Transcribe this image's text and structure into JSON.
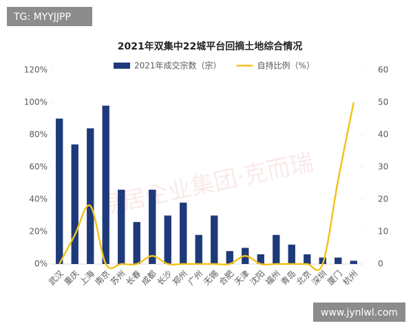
{
  "badge": "TG: MYYJJPP",
  "footer": "www.jynlwl.com",
  "watermark": "易居企业集团·克而瑞",
  "chart_data": {
    "type": "bar",
    "title": "2021年双集中22城平台回摘土地综合情况",
    "categories": [
      "武汉",
      "重庆",
      "上海",
      "南京",
      "苏州",
      "长春",
      "成都",
      "长沙",
      "郑州",
      "广州",
      "无锡",
      "合肥",
      "天津",
      "沈阳",
      "福州",
      "青岛",
      "北京",
      "深圳",
      "厦门",
      "杭州"
    ],
    "series": [
      {
        "name": "2021年成交宗数（宗）",
        "type": "bar",
        "color": "#1f3a7a",
        "values": [
          90,
          74,
          84,
          98,
          46,
          26,
          46,
          30,
          38,
          18,
          30,
          8,
          10,
          6,
          18,
          12,
          6,
          4,
          4,
          2
        ]
      },
      {
        "name": "自持比例（%）",
        "type": "line",
        "axis": "y2",
        "color": "#f2c21b",
        "values": [
          0,
          9,
          18,
          0,
          0,
          0,
          2.5,
          0,
          0,
          0,
          0,
          0,
          2.5,
          0,
          0,
          0,
          0,
          0,
          26,
          50
        ]
      }
    ],
    "ylim": [
      0,
      120
    ],
    "yticks": [
      {
        "value": 0,
        "label": "0%"
      },
      {
        "value": 20,
        "label": "20%"
      },
      {
        "value": 40,
        "label": "40%"
      },
      {
        "value": 60,
        "label": "60%"
      },
      {
        "value": 80,
        "label": "80%"
      },
      {
        "value": 100,
        "label": "100%"
      },
      {
        "value": 120,
        "label": "120%"
      }
    ],
    "y2lim": [
      0,
      60
    ],
    "y2ticks": [
      0,
      10,
      20,
      30,
      40,
      50,
      60
    ],
    "legend": "top"
  }
}
